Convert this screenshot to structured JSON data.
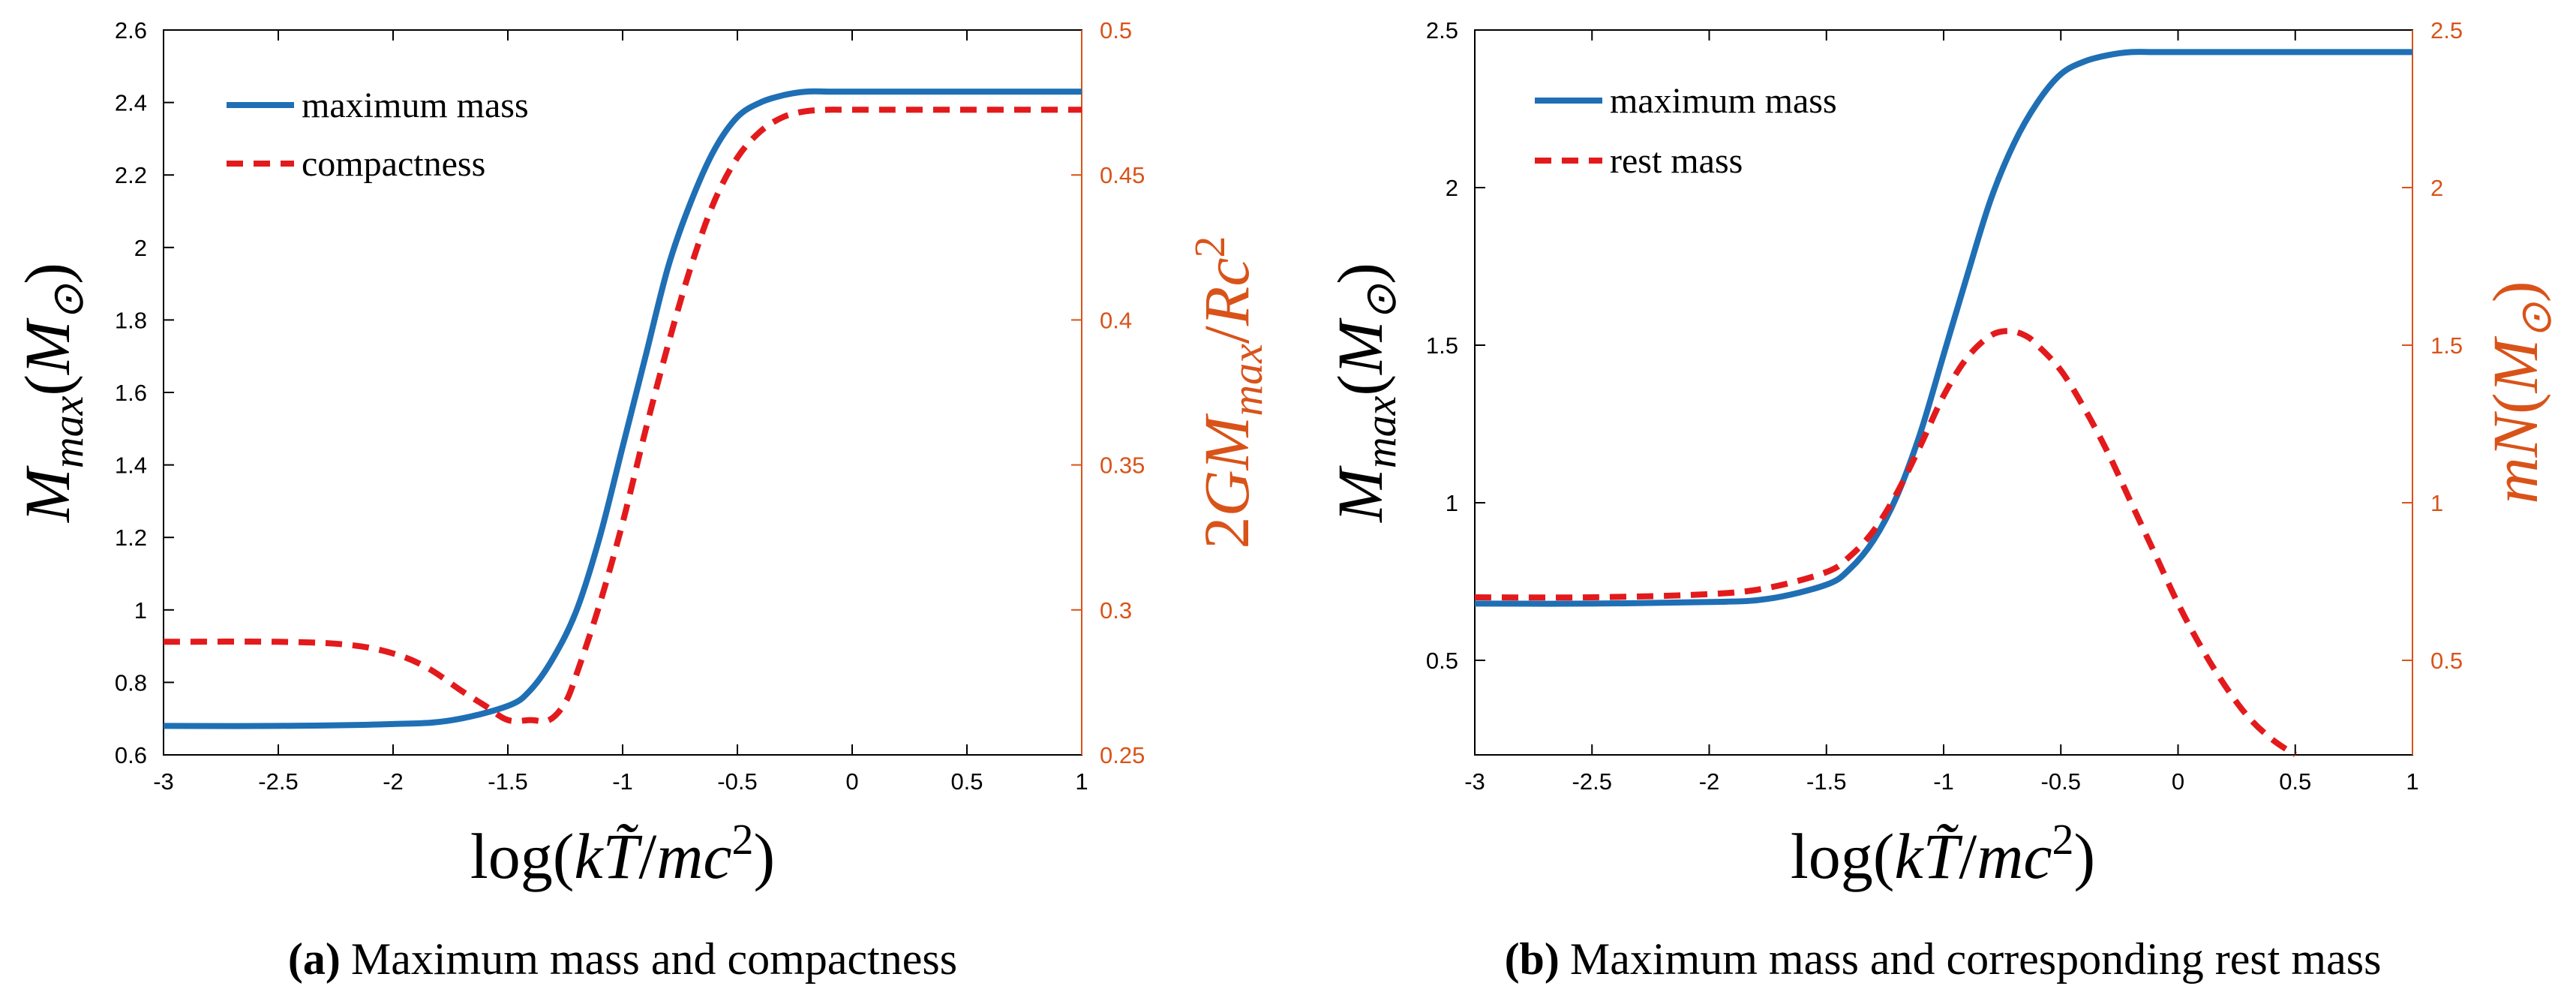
{
  "colors": {
    "blue": "#1f6fb5",
    "red": "#e31a1c",
    "orange_axis": "#d95319",
    "black": "#000000"
  },
  "chart_data": [
    {
      "type": "line",
      "panel": "a",
      "title": "",
      "caption_label": "(a)",
      "caption_text": "Maximum mass and compactness",
      "xlabel": "log(kT̃/mc²)",
      "ylabel": "Mmax(M⊙)",
      "ylabel_right": "2GMmax/Rc²",
      "xlim": [
        -3,
        1
      ],
      "ylim": [
        0.6,
        2.6
      ],
      "ylim_right": [
        0.25,
        0.5
      ],
      "xticks": [
        "-3",
        "-2.5",
        "-2",
        "-1.5",
        "-1",
        "-0.5",
        "0",
        "0.5",
        "1"
      ],
      "yticks": [
        "0.6",
        "0.8",
        "1",
        "1.2",
        "1.4",
        "1.6",
        "1.8",
        "2",
        "2.2",
        "2.4",
        "2.6"
      ],
      "yticks_right": [
        "0.25",
        "0.3",
        "0.35",
        "0.4",
        "0.45",
        "0.5"
      ],
      "legend": [
        "maximum mass",
        "compactness"
      ],
      "legend_position": "top-left",
      "series": [
        {
          "name": "maximum mass",
          "axis": "left",
          "style": "solid",
          "x": [
            -3,
            -2.5,
            -2,
            -1.75,
            -1.5,
            -1.4,
            -1.3,
            -1.2,
            -1.1,
            -1,
            -0.9,
            -0.8,
            -0.7,
            -0.6,
            -0.5,
            -0.4,
            -0.3,
            -0.2,
            -0.1,
            0,
            0.5,
            1
          ],
          "y": [
            0.68,
            0.68,
            0.685,
            0.695,
            0.735,
            0.78,
            0.87,
            1.0,
            1.2,
            1.45,
            1.7,
            1.95,
            2.13,
            2.27,
            2.36,
            2.4,
            2.42,
            2.43,
            2.43,
            2.43,
            2.43,
            2.43
          ]
        },
        {
          "name": "compactness",
          "axis": "right",
          "style": "dashed",
          "x": [
            -3,
            -2.5,
            -2.2,
            -2,
            -1.85,
            -1.7,
            -1.6,
            -1.5,
            -1.4,
            -1.32,
            -1.25,
            -1.2,
            -1.1,
            -1,
            -0.9,
            -0.8,
            -0.7,
            -0.6,
            -0.5,
            -0.4,
            -0.3,
            -0.2,
            -0.1,
            0,
            0.5,
            1
          ],
          "y": [
            0.289,
            0.289,
            0.288,
            0.285,
            0.28,
            0.272,
            0.267,
            0.262,
            0.262,
            0.262,
            0.268,
            0.278,
            0.302,
            0.33,
            0.362,
            0.392,
            0.419,
            0.441,
            0.456,
            0.465,
            0.47,
            0.472,
            0.4725,
            0.4725,
            0.4725,
            0.4725
          ]
        }
      ]
    },
    {
      "type": "line",
      "panel": "b",
      "title": "",
      "caption_label": "(b)",
      "caption_text": "Maximum mass and corresponding rest mass",
      "xlabel": "log(kT̃/mc²)",
      "ylabel": "Mmax(M⊙)",
      "ylabel_right": "mN(M⊙)",
      "xlim": [
        -3,
        1
      ],
      "ylim": [
        0.2,
        2.5
      ],
      "ylim_right": [
        0.2,
        2.5
      ],
      "xticks": [
        "-3",
        "-2.5",
        "-2",
        "-1.5",
        "-1",
        "-0.5",
        "0",
        "0.5",
        "1"
      ],
      "yticks": [
        "0.5",
        "1",
        "1.5",
        "2",
        "2.5"
      ],
      "yticks_right": [
        "0.5",
        "1",
        "1.5",
        "2",
        "2.5"
      ],
      "legend": [
        "maximum mass",
        "rest mass"
      ],
      "legend_position": "top-left",
      "series": [
        {
          "name": "maximum mass",
          "axis": "left",
          "style": "solid",
          "x": [
            -3,
            -2.5,
            -2,
            -1.75,
            -1.5,
            -1.4,
            -1.3,
            -1.2,
            -1.1,
            -1,
            -0.9,
            -0.8,
            -0.7,
            -0.6,
            -0.5,
            -0.4,
            -0.3,
            -0.2,
            -0.1,
            0,
            0.5,
            1
          ],
          "y": [
            0.68,
            0.68,
            0.685,
            0.695,
            0.74,
            0.79,
            0.88,
            1.02,
            1.22,
            1.47,
            1.72,
            1.96,
            2.14,
            2.27,
            2.36,
            2.4,
            2.42,
            2.43,
            2.43,
            2.43,
            2.43,
            2.43
          ]
        },
        {
          "name": "rest mass",
          "axis": "right",
          "style": "dashed",
          "x": [
            -3,
            -2.5,
            -2,
            -1.75,
            -1.5,
            -1.4,
            -1.3,
            -1.2,
            -1.1,
            -1,
            -0.9,
            -0.8,
            -0.72,
            -0.65,
            -0.6,
            -0.5,
            -0.4,
            -0.3,
            -0.2,
            -0.1,
            0,
            0.1,
            0.2,
            0.3,
            0.4,
            0.5
          ],
          "y": [
            0.7,
            0.7,
            0.71,
            0.73,
            0.78,
            0.83,
            0.91,
            1.03,
            1.18,
            1.34,
            1.46,
            1.53,
            1.545,
            1.53,
            1.5,
            1.42,
            1.3,
            1.16,
            1.0,
            0.84,
            0.68,
            0.54,
            0.42,
            0.32,
            0.25,
            0.2
          ]
        }
      ]
    }
  ]
}
